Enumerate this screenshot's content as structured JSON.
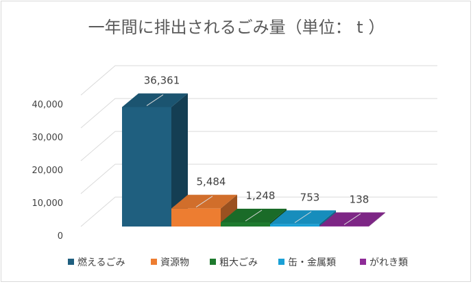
{
  "chart_data": {
    "type": "bar",
    "style": "3d-column",
    "title": "一年間に排出されるごみ量（単位： t ）",
    "categories": [
      "燃えるごみ",
      "資源物",
      "粗大ごみ",
      "缶・金属類",
      "がれき類"
    ],
    "values": [
      36361,
      5484,
      1248,
      753,
      138
    ],
    "value_labels": [
      "36,361",
      "5,484",
      "1,248",
      "753",
      "138"
    ],
    "colors": [
      "#1f5f7f",
      "#ed7d31",
      "#1e7a2e",
      "#1aa0d6",
      "#8e2b97"
    ],
    "ylim": [
      0,
      40000
    ],
    "y_ticks": [
      0,
      10000,
      20000,
      30000,
      40000
    ],
    "y_tick_labels": [
      "0",
      "10,000",
      "20,000",
      "30,000",
      "40,000"
    ],
    "grid": true,
    "legend_position": "bottom"
  }
}
